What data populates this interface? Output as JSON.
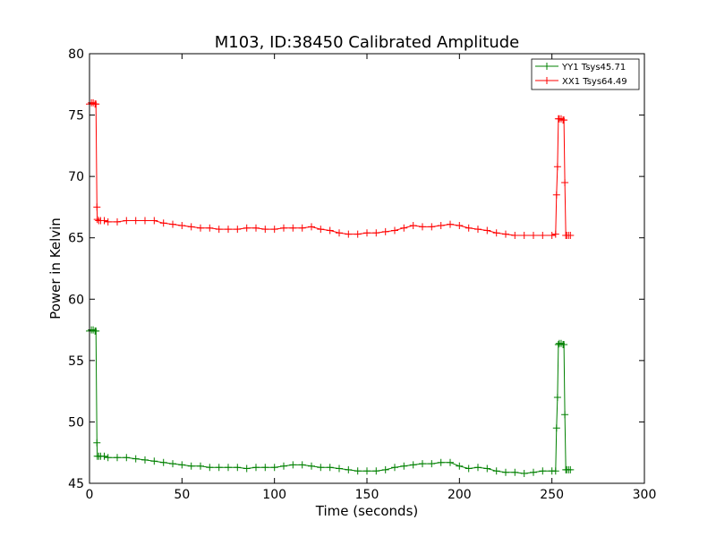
{
  "chart_data": {
    "type": "line",
    "title": "M103, ID:38450 Calibrated Amplitude",
    "xlabel": "Time (seconds)",
    "ylabel": "Power in Kelvin",
    "xlim": [
      0,
      300
    ],
    "ylim": [
      45,
      80
    ],
    "xticks": [
      0,
      50,
      100,
      150,
      200,
      250,
      300
    ],
    "yticks": [
      45,
      50,
      55,
      60,
      65,
      70,
      75,
      80
    ],
    "grid": false,
    "legend_position": "top-right",
    "series": [
      {
        "name": "YY1 Tsys45.71",
        "color": "#008000",
        "marker": "plus",
        "x": [
          0,
          1,
          2,
          3,
          3.5,
          4,
          4.2,
          5,
          6,
          8,
          10,
          15,
          20,
          25,
          30,
          35,
          40,
          45,
          50,
          55,
          60,
          65,
          70,
          75,
          80,
          85,
          90,
          95,
          100,
          105,
          110,
          115,
          120,
          125,
          130,
          135,
          140,
          145,
          150,
          155,
          160,
          165,
          170,
          175,
          180,
          185,
          190,
          195,
          200,
          205,
          210,
          215,
          220,
          225,
          230,
          235,
          240,
          245,
          250,
          252,
          252.5,
          253,
          253.5,
          254,
          255,
          256,
          256.5,
          257,
          257.5,
          258,
          259,
          260
        ],
        "y": [
          57.4,
          57.5,
          57.5,
          57.4,
          57.4,
          48.3,
          47.2,
          47.2,
          47.2,
          47.2,
          47.1,
          47.1,
          47.1,
          47.0,
          46.9,
          46.8,
          46.7,
          46.6,
          46.5,
          46.4,
          46.4,
          46.3,
          46.3,
          46.3,
          46.3,
          46.2,
          46.3,
          46.3,
          46.3,
          46.4,
          46.5,
          46.5,
          46.4,
          46.3,
          46.3,
          46.2,
          46.1,
          46.0,
          46.0,
          46.0,
          46.1,
          46.3,
          46.4,
          46.5,
          46.6,
          46.6,
          46.7,
          46.7,
          46.4,
          46.2,
          46.3,
          46.2,
          46.0,
          45.9,
          45.9,
          45.8,
          45.9,
          46.0,
          46.0,
          46.0,
          49.5,
          52.0,
          56.3,
          56.4,
          56.4,
          56.3,
          56.3,
          50.6,
          46.1,
          46.1,
          46.1,
          46.1
        ]
      },
      {
        "name": "XX1 Tsys64.49",
        "color": "#ff0000",
        "marker": "plus",
        "x": [
          0,
          1,
          2,
          3,
          3.5,
          4,
          4.2,
          5,
          6,
          8,
          10,
          15,
          20,
          25,
          30,
          35,
          40,
          45,
          50,
          55,
          60,
          65,
          70,
          75,
          80,
          85,
          90,
          95,
          100,
          105,
          110,
          115,
          120,
          125,
          130,
          135,
          140,
          145,
          150,
          155,
          160,
          165,
          170,
          175,
          180,
          185,
          190,
          195,
          200,
          205,
          210,
          215,
          220,
          225,
          230,
          235,
          240,
          245,
          250,
          252,
          252.5,
          253,
          253.5,
          254,
          255,
          256,
          256.5,
          257,
          257.5,
          258,
          259,
          260
        ],
        "y": [
          75.9,
          76.0,
          76.0,
          75.9,
          75.9,
          67.5,
          66.5,
          66.4,
          66.4,
          66.4,
          66.3,
          66.3,
          66.4,
          66.4,
          66.4,
          66.4,
          66.2,
          66.1,
          66.0,
          65.9,
          65.8,
          65.8,
          65.7,
          65.7,
          65.7,
          65.8,
          65.8,
          65.7,
          65.7,
          65.8,
          65.8,
          65.8,
          65.9,
          65.7,
          65.6,
          65.4,
          65.3,
          65.3,
          65.4,
          65.4,
          65.5,
          65.6,
          65.8,
          66.0,
          65.9,
          65.9,
          66.0,
          66.1,
          66.0,
          65.8,
          65.7,
          65.6,
          65.4,
          65.3,
          65.2,
          65.2,
          65.2,
          65.2,
          65.2,
          65.3,
          68.5,
          70.8,
          74.7,
          74.7,
          74.7,
          74.6,
          74.6,
          69.5,
          65.2,
          65.2,
          65.2,
          65.2
        ]
      }
    ]
  }
}
